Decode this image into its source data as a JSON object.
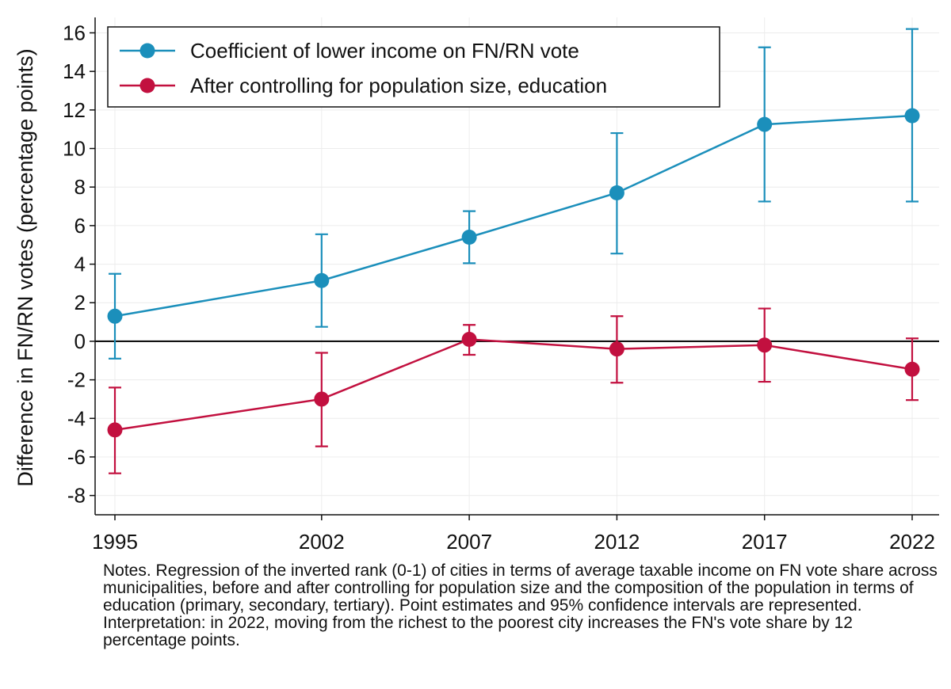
{
  "chart_data": {
    "type": "line",
    "title": "",
    "xlabel": "",
    "ylabel": "Difference in FN/RN votes (percentage points)",
    "x": [
      1995,
      2002,
      2007,
      2012,
      2017,
      2022
    ],
    "xlim": [
      1995,
      2022
    ],
    "ylim": [
      -9,
      16.8
    ],
    "yticks": [
      16,
      14,
      12,
      10,
      8,
      6,
      4,
      2,
      0,
      -2,
      -4,
      -6,
      -8
    ],
    "grid": true,
    "legend_position": "top-left",
    "reference_line": 0,
    "series": [
      {
        "name": "Coefficient of lower income on FN/RN vote",
        "color": "#1b8fbb",
        "values": [
          1.3,
          3.15,
          5.4,
          7.7,
          11.25,
          11.7
        ],
        "ci_low": [
          -0.9,
          0.75,
          4.05,
          4.55,
          7.25,
          7.25
        ],
        "ci_high": [
          3.5,
          5.55,
          6.75,
          10.8,
          15.25,
          16.2
        ]
      },
      {
        "name": "After controlling for population size, education",
        "color": "#c2103f",
        "values": [
          -4.6,
          -3.0,
          0.1,
          -0.4,
          -0.2,
          -1.45
        ],
        "ci_low": [
          -6.85,
          -5.45,
          -0.7,
          -2.15,
          -2.1,
          -3.05
        ],
        "ci_high": [
          -2.4,
          -0.6,
          0.85,
          1.3,
          1.7,
          0.15
        ]
      }
    ]
  },
  "notes": {
    "line1": "Notes. Regression of the inverted rank (0-1) of cities in terms of average taxable income on FN vote share across municipalities, before and after controlling for population size and the composition of the population in terms of education (primary, secondary, tertiary). Point estimates and 95% confidence intervals are represented.",
    "line2": "Interpretation: in 2022, moving from the richest to the poorest city increases the FN's vote share by 12 percentage points."
  }
}
